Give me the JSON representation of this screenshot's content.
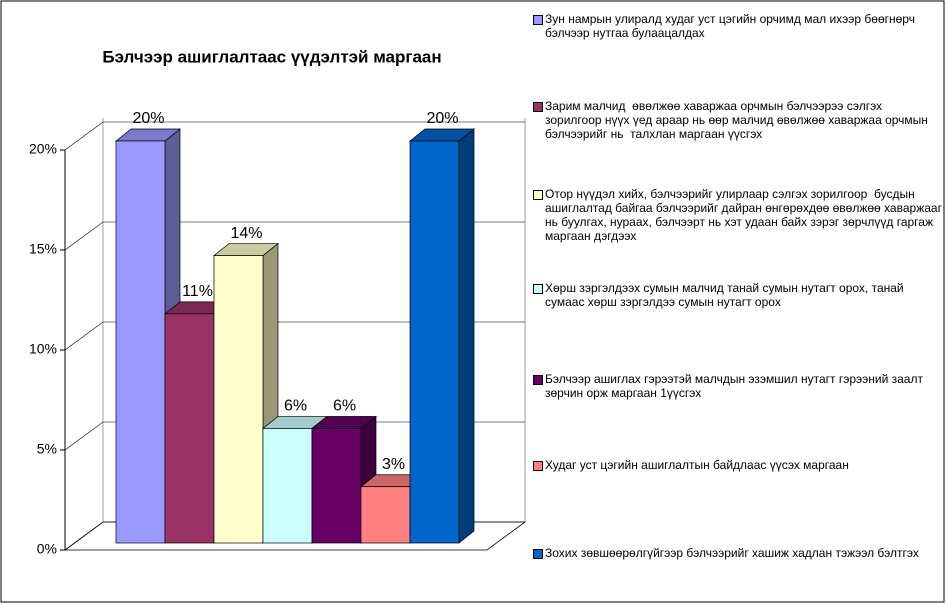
{
  "chart_data": {
    "type": "bar3d",
    "title": "Бэлчээр ашиглалтаас үүдэлтэй маргаан",
    "categories": [
      null
    ],
    "ylim": [
      0,
      20
    ],
    "yticks": [
      {
        "value": 0,
        "label": "0%"
      },
      {
        "value": 5,
        "label": "5%"
      },
      {
        "value": 10,
        "label": "10%"
      },
      {
        "value": 15,
        "label": "15%"
      },
      {
        "value": 20,
        "label": "20%"
      }
    ],
    "grid": true,
    "legend": "right",
    "series": [
      {
        "name": "Зун намрын улиралд худаг уст цэгийн орчимд мал ихээр бөөгнөрч бэлчээр нутгаа булаацалдах",
        "color": "#9999ff",
        "values": [
          20
        ],
        "value_labels": [
          "20%"
        ]
      },
      {
        "name": "Зарим малчид  өвөлжөө хаваржаа орчмын бэлчээрээ сэлгэх  зорилгоор нүүх үед араар нь өөр малчид өвөлжөө хаваржаа орчмын бэлчээрийг нь  талхлан маргаан үүсгэх",
        "color": "#993366",
        "values": [
          11.4
        ],
        "value_labels": [
          "11%"
        ]
      },
      {
        "name": "Отор нүүдэл хийх, бэлчээрийг улирлаар сэлгэх зорилгоор  бусдын ашиглалтад байгаа бэлчээрийг дайран өнгөрөхдөө өвөлжөө хаваржааг нь буулгах, нураах, бэлчээрт нь хэт удаан байх зэрэг зөрчлүүд гаргаж маргаан дэгдээх",
        "color": "#ffffcc",
        "values": [
          14.3
        ],
        "value_labels": [
          "14%"
        ]
      },
      {
        "name": "Хөрш зэргэлдээх сумын малчид танай сумын нутагт орох, танай сумаас хөрш зэргэлдээ сумын нутагт орох",
        "color": "#ccffff",
        "values": [
          5.7
        ],
        "value_labels": [
          "6%"
        ]
      },
      {
        "name": "Бэлчээр ашиглах гэрээтэй малчдын эзэмшил нутагт гэрээний заалт зөрчин орж маргаан 1үүсгэх",
        "color": "#660066",
        "values": [
          5.7
        ],
        "value_labels": [
          "6%"
        ]
      },
      {
        "name": "Худаг уст цэгийн ашиглалтын байдлаас үүсэх маргаан",
        "color": "#ff8080",
        "values": [
          2.8
        ],
        "value_labels": [
          "3%"
        ]
      },
      {
        "name": "Зохих зөвшөөрөлгүйгээр бэлчээрийг хашиж хадлан тэжээл бэлтгэх",
        "color": "#0066cc",
        "values": [
          20
        ],
        "value_labels": [
          "20%"
        ]
      }
    ]
  }
}
